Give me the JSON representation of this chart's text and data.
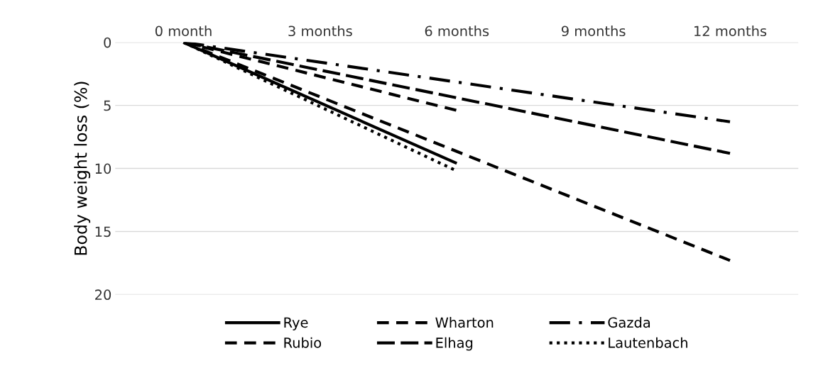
{
  "chart_data": {
    "type": "line",
    "ylabel": "Body weight loss (%)",
    "categories": [
      "0 month",
      "3 months",
      "6 months",
      "9 months",
      "12 months"
    ],
    "series": [
      {
        "name": "Rye",
        "color": "#000000",
        "line_style": "solid",
        "values": [
          0,
          null,
          9.6,
          null,
          null
        ]
      },
      {
        "name": "Wharton",
        "color": "#000000",
        "line_style": "dashed",
        "values": [
          0,
          null,
          5.4,
          null,
          null
        ]
      },
      {
        "name": "Gazda",
        "color": "#000000",
        "line_style": "dashdot",
        "values": [
          0,
          null,
          null,
          null,
          6.3
        ]
      },
      {
        "name": "Rubio",
        "color": "#000000",
        "line_style": "dashed",
        "values": [
          0,
          null,
          null,
          null,
          17.3
        ]
      },
      {
        "name": "Elhag",
        "color": "#000000",
        "line_style": "longdash",
        "values": [
          0,
          null,
          null,
          null,
          8.8
        ]
      },
      {
        "name": "Lautenbach",
        "color": "#000000",
        "line_style": "dotted",
        "values": [
          0,
          null,
          10.2,
          null,
          null
        ]
      }
    ],
    "ylim": [
      20,
      0
    ],
    "yticks": [
      0,
      5,
      10,
      15,
      20
    ],
    "grid": "y",
    "legend": "bottom",
    "marker": "none"
  }
}
